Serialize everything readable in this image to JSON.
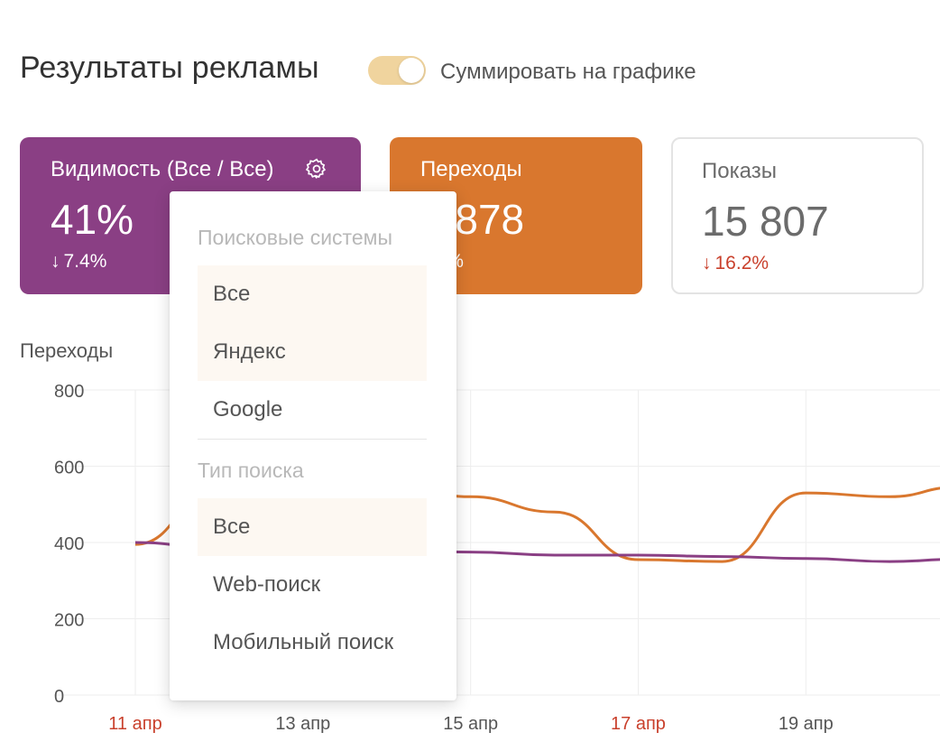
{
  "header": {
    "title": "Результаты рекламы",
    "toggle_label": "Суммировать на графике",
    "toggle_on": true
  },
  "cards": {
    "visibility": {
      "title": "Видимость (Все / Все)",
      "value": "41%",
      "delta": "7.4%",
      "delta_arrow": "↓",
      "color": "#8a3f84",
      "icon": "gear-icon"
    },
    "clicks": {
      "title": "Переходы",
      "value": "4 878",
      "delta": "8.6%",
      "color": "#d9772e"
    },
    "shows": {
      "title": "Показы",
      "value": "15 807",
      "delta": "16.2%",
      "delta_arrow": "↓",
      "delta_color": "#c9402c"
    }
  },
  "chart_title": "Переходы",
  "chart_data": {
    "type": "line",
    "ylim": [
      0,
      800
    ],
    "yticks": [
      "800",
      "600",
      "400",
      "200",
      "0"
    ],
    "ytick_values": [
      800,
      600,
      400,
      200,
      0
    ],
    "xticks": [
      {
        "label": "11 апр",
        "day": 11,
        "weekend": true
      },
      {
        "label": "13 апр",
        "day": 13,
        "weekend": false
      },
      {
        "label": "15 апр",
        "day": 15,
        "weekend": false
      },
      {
        "label": "17 апр",
        "day": 17,
        "weekend": true
      },
      {
        "label": "19 апр",
        "day": 19,
        "weekend": false
      }
    ],
    "x": [
      11,
      12,
      13,
      14,
      15,
      16,
      17,
      18,
      19,
      20,
      20.8
    ],
    "series": [
      {
        "color": "#d9772e",
        "values": [
          395,
          545,
          565,
          550,
          520,
          480,
          355,
          350,
          530,
          520,
          545
        ]
      },
      {
        "color": "#8a3f84",
        "values": [
          400,
          385,
          380,
          378,
          375,
          367,
          367,
          363,
          358,
          350,
          356
        ]
      }
    ],
    "grid": true
  },
  "dropdown": {
    "section_engines": "Поисковые системы",
    "engines": [
      {
        "label": "Все",
        "active": true
      },
      {
        "label": "Яндекс",
        "active": true
      },
      {
        "label": "Google",
        "active": false
      }
    ],
    "section_type": "Тип поиска",
    "types": [
      {
        "label": "Все",
        "active": true
      },
      {
        "label": "Web-поиск",
        "active": false
      },
      {
        "label": "Мобильный поиск",
        "active": false
      }
    ]
  },
  "colors": {
    "accent_purple": "#8a3f84",
    "accent_orange": "#d9772e",
    "weekend_red": "#c9402c"
  }
}
